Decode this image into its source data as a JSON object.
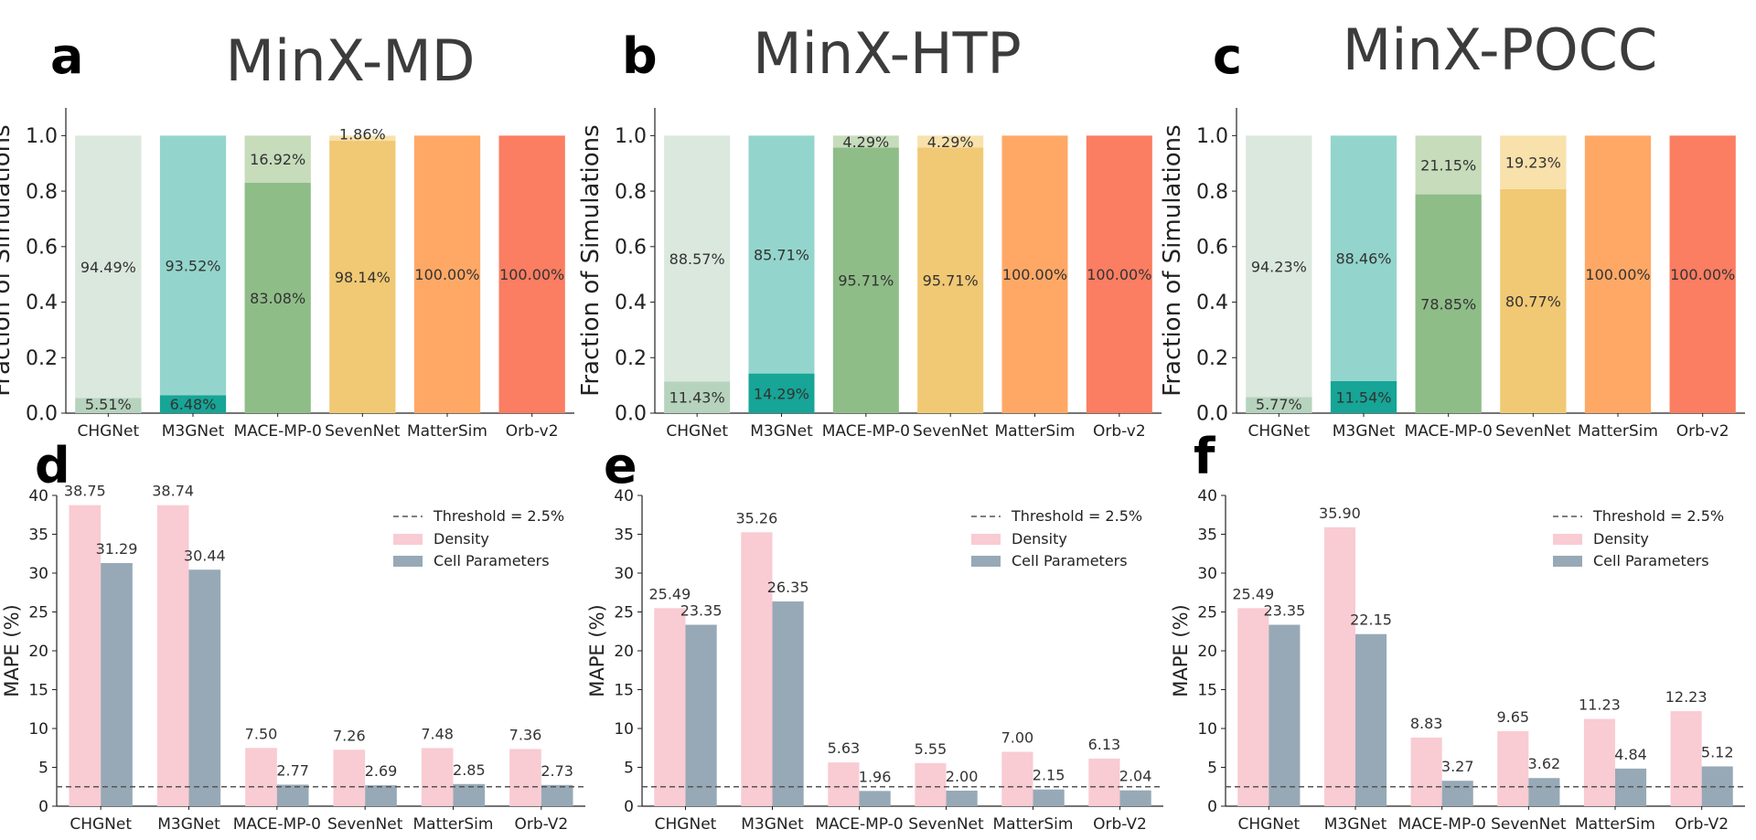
{
  "figure": {
    "panels": [
      {
        "letter": "a",
        "title": "MinX-MD"
      },
      {
        "letter": "b",
        "title": "MinX-HTP"
      },
      {
        "letter": "c",
        "title": "MinX-POCC"
      },
      {
        "letter": "d",
        "title": ""
      },
      {
        "letter": "e",
        "title": ""
      },
      {
        "letter": "f",
        "title": ""
      }
    ]
  },
  "colors": {
    "CHGNet": {
      "light": "#dbe8de",
      "dark": "#b6d3bd"
    },
    "M3GNet": {
      "light": "#93d5cc",
      "dark": "#16a596"
    },
    "MACE-MP-0": {
      "light": "#c6dcbb",
      "dark": "#8fbd88"
    },
    "SevenNet": {
      "light": "#f8e1ab",
      "dark": "#f1c974"
    },
    "MatterSim": {
      "light": "#ffa866",
      "dark": "#ffa866"
    },
    "Orb-v2": {
      "light": "#fb7d62",
      "dark": "#fb7d62"
    },
    "density": "#f9cbd3",
    "cell": "#97a9b6",
    "threshold": "#555555"
  },
  "chart_data": [
    {
      "panel": "a",
      "type": "bar",
      "stacked": true,
      "title": "MinX-MD",
      "ylabel": "Fraction of Simulations",
      "ylim": [
        0,
        1.1
      ],
      "yticks": [
        0.0,
        0.2,
        0.4,
        0.6,
        0.8,
        1.0
      ],
      "ytick_labels": [
        "0.0",
        "0.2",
        "0.4",
        "0.6",
        "0.8",
        "1.0"
      ],
      "categories": [
        "CHGNet",
        "M3GNet",
        "MACE-MP-0",
        "SevenNet",
        "MatterSim",
        "Orb-v2"
      ],
      "bottom_values": [
        0.0551,
        0.0648,
        0.8308,
        0.9814,
        1.0,
        1.0
      ],
      "bottom_labels": [
        "5.51%",
        "6.48%",
        "83.08%",
        "98.14%",
        "100.00%",
        "100.00%"
      ],
      "top_values": [
        0.9449,
        0.9352,
        0.1692,
        0.0186,
        0,
        0
      ],
      "top_labels": [
        "94.49%",
        "93.52%",
        "16.92%",
        "1.86%",
        "",
        ""
      ]
    },
    {
      "panel": "b",
      "type": "bar",
      "stacked": true,
      "title": "MinX-HTP",
      "ylabel": "Fraction of Simulations",
      "ylim": [
        0,
        1.1
      ],
      "yticks": [
        0.0,
        0.2,
        0.4,
        0.6,
        0.8,
        1.0
      ],
      "ytick_labels": [
        "0.0",
        "0.2",
        "0.4",
        "0.6",
        "0.8",
        "1.0"
      ],
      "categories": [
        "CHGNet",
        "M3GNet",
        "MACE-MP-0",
        "SevenNet",
        "MatterSim",
        "Orb-v2"
      ],
      "bottom_values": [
        0.1143,
        0.1429,
        0.9571,
        0.9571,
        1.0,
        1.0
      ],
      "bottom_labels": [
        "11.43%",
        "14.29%",
        "95.71%",
        "95.71%",
        "100.00%",
        "100.00%"
      ],
      "top_values": [
        0.8857,
        0.8571,
        0.0429,
        0.0429,
        0,
        0
      ],
      "top_labels": [
        "88.57%",
        "85.71%",
        "4.29%",
        "4.29%",
        "",
        ""
      ]
    },
    {
      "panel": "c",
      "type": "bar",
      "stacked": true,
      "title": "MinX-POCC",
      "ylabel": "Fraction of Simulations",
      "ylim": [
        0,
        1.1
      ],
      "yticks": [
        0.0,
        0.2,
        0.4,
        0.6,
        0.8,
        1.0
      ],
      "ytick_labels": [
        "0.0",
        "0.2",
        "0.4",
        "0.6",
        "0.8",
        "1.0"
      ],
      "categories": [
        "CHGNet",
        "M3GNet",
        "MACE-MP-0",
        "SevenNet",
        "MatterSim",
        "Orb-v2"
      ],
      "bottom_values": [
        0.0577,
        0.1154,
        0.7885,
        0.8077,
        1.0,
        1.0
      ],
      "bottom_labels": [
        "5.77%",
        "11.54%",
        "78.85%",
        "80.77%",
        "100.00%",
        "100.00%"
      ],
      "top_values": [
        0.9423,
        0.8846,
        0.2115,
        0.1923,
        0,
        0
      ],
      "top_labels": [
        "94.23%",
        "88.46%",
        "21.15%",
        "19.23%",
        "",
        ""
      ]
    },
    {
      "panel": "d",
      "type": "bar",
      "grouped": true,
      "ylabel": "MAPE (%)",
      "ylim": [
        0,
        40
      ],
      "yticks": [
        0,
        5,
        10,
        15,
        20,
        25,
        30,
        35,
        40
      ],
      "ytick_labels": [
        "0",
        "5",
        "10",
        "15",
        "20",
        "25",
        "30",
        "35",
        "40"
      ],
      "categories": [
        "CHGNet",
        "M3GNet",
        "MACE-MP-0",
        "SevenNet",
        "MatterSim",
        "Orb-V2"
      ],
      "threshold": 2.5,
      "legend": [
        "Threshold = 2.5%",
        "Density",
        "Cell Parameters"
      ],
      "series": [
        {
          "name": "Density",
          "values": [
            38.75,
            38.74,
            7.5,
            7.26,
            7.48,
            7.36
          ],
          "labels": [
            "38.75",
            "38.74",
            "7.50",
            "7.26",
            "7.48",
            "7.36"
          ]
        },
        {
          "name": "Cell Parameters",
          "values": [
            31.29,
            30.44,
            2.77,
            2.69,
            2.85,
            2.73
          ],
          "labels": [
            "31.29",
            "30.44",
            "2.77",
            "2.69",
            "2.85",
            "2.73"
          ]
        }
      ]
    },
    {
      "panel": "e",
      "type": "bar",
      "grouped": true,
      "ylabel": "MAPE (%)",
      "ylim": [
        0,
        40
      ],
      "yticks": [
        0,
        5,
        10,
        15,
        20,
        25,
        30,
        35,
        40
      ],
      "ytick_labels": [
        "0",
        "5",
        "10",
        "15",
        "20",
        "25",
        "30",
        "35",
        "40"
      ],
      "categories": [
        "CHGNet",
        "M3GNet",
        "MACE-MP-0",
        "SevenNet",
        "MatterSim",
        "Orb-V2"
      ],
      "threshold": 2.5,
      "legend": [
        "Threshold = 2.5%",
        "Density",
        "Cell Parameters"
      ],
      "series": [
        {
          "name": "Density",
          "values": [
            25.49,
            35.26,
            5.63,
            5.55,
            7.0,
            6.13
          ],
          "labels": [
            "25.49",
            "35.26",
            "5.63",
            "5.55",
            "7.00",
            "6.13"
          ]
        },
        {
          "name": "Cell Parameters",
          "values": [
            23.35,
            26.35,
            1.96,
            2.0,
            2.15,
            2.04
          ],
          "labels": [
            "23.35",
            "26.35",
            "1.96",
            "2.00",
            "2.15",
            "2.04"
          ]
        }
      ]
    },
    {
      "panel": "f",
      "type": "bar",
      "grouped": true,
      "ylabel": "MAPE (%)",
      "ylim": [
        0,
        40
      ],
      "yticks": [
        0,
        5,
        10,
        15,
        20,
        25,
        30,
        35,
        40
      ],
      "ytick_labels": [
        "0",
        "5",
        "10",
        "15",
        "20",
        "25",
        "30",
        "35",
        "40"
      ],
      "categories": [
        "CHGNet",
        "M3GNet",
        "MACE-MP-0",
        "SevenNet",
        "MatterSim",
        "Orb-V2"
      ],
      "threshold": 2.5,
      "legend": [
        "Threshold = 2.5%",
        "Density",
        "Cell Parameters"
      ],
      "series": [
        {
          "name": "Density",
          "values": [
            25.49,
            35.9,
            8.83,
            9.65,
            11.23,
            12.23
          ],
          "labels": [
            "25.49",
            "35.90",
            "8.83",
            "9.65",
            "11.23",
            "12.23"
          ]
        },
        {
          "name": "Cell Parameters",
          "values": [
            23.35,
            22.15,
            3.27,
            3.62,
            4.84,
            5.12
          ],
          "labels": [
            "23.35",
            "22.15",
            "3.27",
            "3.62",
            "4.84",
            "5.12"
          ]
        }
      ]
    }
  ]
}
